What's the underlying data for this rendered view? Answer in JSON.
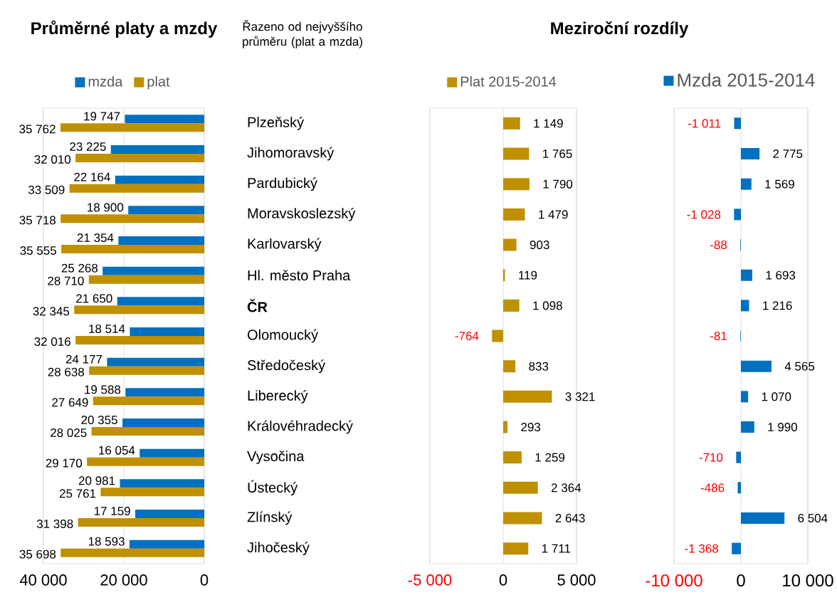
{
  "chart_data": [
    {
      "type": "bar",
      "orientation": "horizontal",
      "title": "Průměrné platy a mzdy",
      "annotations": [
        "Řazeno od nejvyššího průměru (plat a mzda)"
      ],
      "categories": [
        "Plzeňský",
        "Jihomoravský",
        "Pardubický",
        "Moravskoslezský",
        "Karlovarský",
        "Hl. město Praha",
        "**ČR**",
        "Olomoucký",
        "Středočeský",
        "Liberecký",
        "Královéhradecký",
        "Vysočina",
        "Ústecký",
        "Zlínský",
        "Jihočeský"
      ],
      "series": [
        {
          "name": "mzda",
          "color": "#0070c0",
          "values": [
            19747,
            23225,
            22164,
            18900,
            21354,
            25268,
            21650,
            18514,
            24177,
            19588,
            20355,
            16054,
            20981,
            17159,
            18593
          ],
          "value_labels": [
            "19 747",
            "23 225",
            "22 164",
            "18 900",
            "21 354",
            "25 268",
            "21 650",
            "18 514",
            "24 177",
            "19 588",
            "20 355",
            "16 054",
            "20 981",
            "17 159",
            "18 593"
          ]
        },
        {
          "name": "plat",
          "color": "#bf9000",
          "values": [
            35762,
            32010,
            33509,
            35718,
            35555,
            28710,
            32345,
            32016,
            28638,
            27649,
            28025,
            29170,
            25761,
            31398,
            35698
          ],
          "value_labels": [
            "35 762",
            "32 010",
            "33 509",
            "35 718",
            "35 555",
            "28 710",
            "32 345",
            "32 016",
            "28 638",
            "27 649",
            "28 025",
            "29 170",
            "25 761",
            "31 398",
            "35 698"
          ]
        }
      ],
      "xlim": [
        40000,
        0
      ],
      "xticks": [
        {
          "value": 40000,
          "label": "40 000"
        },
        {
          "value": 20000,
          "label": "20 000"
        },
        0
      ],
      "grid": "x",
      "legend": "top"
    },
    {
      "type": "bar",
      "orientation": "horizontal",
      "title": "Meziroční rozdíly",
      "categories": [
        null,
        null,
        null,
        null,
        null,
        null,
        null,
        null,
        null,
        null,
        null,
        null,
        null,
        null,
        null
      ],
      "series": [
        {
          "name": "Plat 2015-2014",
          "color": "#bf9000",
          "values": [
            1149,
            1765,
            1790,
            1479,
            903,
            119,
            1098,
            -764,
            833,
            3321,
            293,
            1259,
            2364,
            2643,
            1711
          ],
          "value_labels": [
            "1 149",
            "1 765",
            "1 790",
            "1 479",
            "903",
            "119",
            "1 098",
            "-764",
            "833",
            "3 321",
            "293",
            "1 259",
            "2 364",
            "2 643",
            "1 711"
          ]
        }
      ],
      "xlim": [
        -5000,
        5000
      ],
      "xticks": [
        {
          "value": -5000,
          "label": "-5 000"
        },
        0,
        {
          "value": 5000,
          "label": "5 000"
        }
      ],
      "grid": "x",
      "legend": "top",
      "tick_labels": "x"
    },
    {
      "type": "bar",
      "orientation": "horizontal",
      "categories": [
        null,
        null,
        null,
        null,
        null,
        null,
        null,
        null,
        null,
        null,
        null,
        null,
        null,
        null,
        null
      ],
      "series": [
        {
          "name": "Mzda 2015-2014",
          "color": "#0070c0",
          "values": [
            -1011,
            2775,
            1569,
            -1028,
            -88,
            1693,
            1216,
            -81,
            4565,
            1070,
            1990,
            -710,
            -486,
            6504,
            -1368
          ],
          "value_labels": [
            "-1 011",
            "2 775",
            "1 569",
            "-1 028",
            "-88",
            "1 693",
            "1 216",
            "-81",
            "4 565",
            "1 070",
            "1 990",
            "-710",
            "-486",
            "6 504",
            "-1 368"
          ]
        }
      ],
      "xlim": [
        -10000,
        10000
      ],
      "xticks": [
        {
          "value": -10000,
          "label": "-10 000"
        },
        0,
        {
          "value": 10000,
          "label": "10 000"
        }
      ],
      "grid": "x",
      "legend": "top",
      "tick_labels": "x"
    }
  ]
}
